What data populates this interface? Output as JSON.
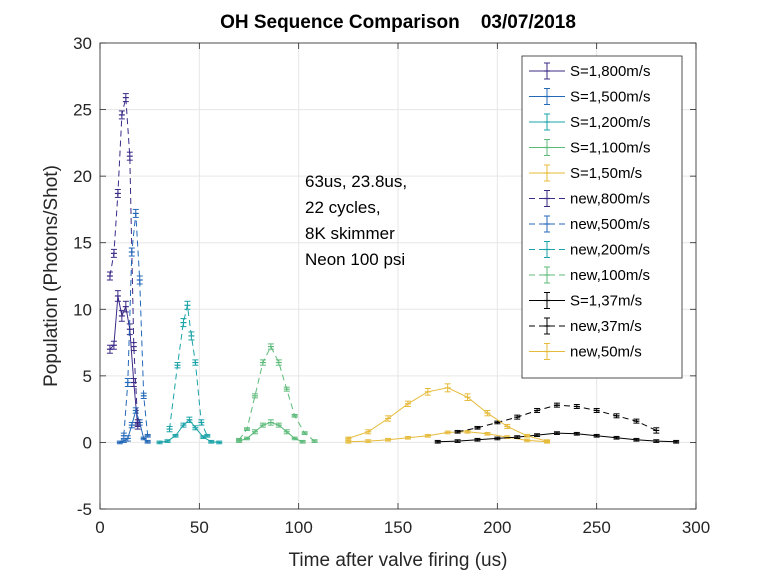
{
  "chart_data": {
    "type": "line",
    "title": "OH Sequence Comparison    03/07/2018",
    "xlabel": "Time after valve firing (us)",
    "ylabel": "Population (Photons/Shot)",
    "xlim": [
      0,
      300
    ],
    "ylim": [
      -5,
      30
    ],
    "xticks": [
      0,
      50,
      100,
      150,
      200,
      250,
      300
    ],
    "yticks": [
      -5,
      0,
      5,
      10,
      15,
      20,
      25,
      30
    ],
    "grid": true,
    "legend_position": "top-right",
    "annotation": [
      "63us, 23.8us,",
      "22 cycles,",
      "8K skimmer",
      "Neon 100 psi"
    ],
    "series": [
      {
        "name": "S=1,800m/s",
        "color": "#3b2a86",
        "dash": "solid",
        "x": [
          5,
          7,
          9,
          11,
          13,
          15,
          17,
          19
        ],
        "y": [
          7.0,
          7.3,
          11.0,
          9.5,
          10.2,
          8.5,
          4.5,
          1.2
        ],
        "err": [
          0.3,
          0.3,
          0.4,
          0.4,
          0.4,
          0.4,
          0.3,
          0.2
        ]
      },
      {
        "name": "S=1,500m/s",
        "color": "#2468b8",
        "dash": "solid",
        "x": [
          10,
          12,
          14,
          16,
          18,
          20,
          22,
          24
        ],
        "y": [
          0.0,
          0.1,
          0.3,
          1.3,
          2.4,
          1.5,
          0.3,
          0.05
        ],
        "err": [
          0.1,
          0.1,
          0.2,
          0.2,
          0.2,
          0.2,
          0.1,
          0.1
        ]
      },
      {
        "name": "S=1,200m/s",
        "color": "#1aa3a8",
        "dash": "solid",
        "x": [
          30,
          34,
          38,
          42,
          45,
          48,
          52,
          56,
          60
        ],
        "y": [
          0.0,
          0.1,
          0.5,
          1.3,
          1.7,
          1.1,
          0.4,
          0.05,
          0.0
        ],
        "err": [
          0.1,
          0.1,
          0.1,
          0.15,
          0.2,
          0.15,
          0.1,
          0.1,
          0.1
        ]
      },
      {
        "name": "S=1,100m/s",
        "color": "#5dbb7a",
        "dash": "solid",
        "x": [
          70,
          74,
          78,
          82,
          86,
          90,
          94,
          98,
          102
        ],
        "y": [
          0.1,
          0.3,
          0.8,
          1.3,
          1.5,
          1.3,
          0.8,
          0.3,
          0.05
        ],
        "err": [
          0.1,
          0.1,
          0.15,
          0.15,
          0.2,
          0.15,
          0.15,
          0.1,
          0.1
        ]
      },
      {
        "name": "S=1,50m/s",
        "color": "#e6bb3b",
        "dash": "solid",
        "x": [
          125,
          135,
          145,
          155,
          165,
          175,
          185,
          195,
          205,
          215,
          225
        ],
        "y": [
          0.05,
          0.1,
          0.2,
          0.35,
          0.5,
          0.75,
          0.8,
          0.65,
          0.4,
          0.15,
          0.05
        ],
        "err": [
          0.1,
          0.1,
          0.1,
          0.1,
          0.1,
          0.1,
          0.1,
          0.1,
          0.1,
          0.1,
          0.1
        ]
      },
      {
        "name": "new,800m/s",
        "color": "#3b2a86",
        "dash": "dashed",
        "x": [
          5,
          7,
          9,
          11,
          13,
          15,
          17,
          19
        ],
        "y": [
          12.5,
          14.2,
          18.7,
          24.6,
          25.9,
          21.5,
          7.2,
          1.5
        ],
        "err": [
          0.3,
          0.3,
          0.3,
          0.3,
          0.3,
          0.3,
          0.3,
          0.2
        ]
      },
      {
        "name": "new,500m/s",
        "color": "#2468b8",
        "dash": "dashed",
        "x": [
          12,
          14,
          16,
          18,
          20,
          22,
          24
        ],
        "y": [
          0.5,
          4.5,
          14.3,
          17.2,
          12.2,
          3.5,
          0.5
        ],
        "err": [
          0.2,
          0.3,
          0.3,
          0.3,
          0.3,
          0.2,
          0.1
        ]
      },
      {
        "name": "new,200m/s",
        "color": "#1aa3a8",
        "dash": "dashed",
        "x": [
          35,
          39,
          42,
          44,
          46,
          48,
          51,
          54
        ],
        "y": [
          1.0,
          5.8,
          9.0,
          10.3,
          8.0,
          6.0,
          1.5,
          0.5
        ],
        "err": [
          0.2,
          0.2,
          0.3,
          0.3,
          0.3,
          0.2,
          0.2,
          0.1
        ]
      },
      {
        "name": "new,100m/s",
        "color": "#5dbb7a",
        "dash": "dashed",
        "x": [
          70,
          74,
          78,
          82,
          86,
          90,
          94,
          98,
          103,
          108
        ],
        "y": [
          0.2,
          1.0,
          3.5,
          6.0,
          7.2,
          6.0,
          4.0,
          2.0,
          0.7,
          0.1
        ],
        "err": [
          0.1,
          0.1,
          0.15,
          0.2,
          0.2,
          0.2,
          0.15,
          0.1,
          0.1,
          0.1
        ]
      },
      {
        "name": "S=1,37m/s",
        "color": "#000000",
        "dash": "solid",
        "x": [
          170,
          180,
          190,
          200,
          210,
          220,
          230,
          240,
          250,
          260,
          270,
          280,
          290
        ],
        "y": [
          0.05,
          0.1,
          0.2,
          0.3,
          0.4,
          0.55,
          0.7,
          0.65,
          0.5,
          0.35,
          0.2,
          0.1,
          0.05
        ],
        "err": [
          0.1,
          0.1,
          0.1,
          0.1,
          0.1,
          0.1,
          0.1,
          0.1,
          0.1,
          0.1,
          0.1,
          0.1,
          0.1
        ]
      },
      {
        "name": "new,37m/s",
        "color": "#000000",
        "dash": "dashed",
        "x": [
          180,
          190,
          200,
          210,
          220,
          230,
          240,
          250,
          260,
          270,
          280
        ],
        "y": [
          0.8,
          1.1,
          1.5,
          1.9,
          2.4,
          2.8,
          2.7,
          2.4,
          2.0,
          1.6,
          0.9
        ],
        "err": [
          0.1,
          0.1,
          0.1,
          0.15,
          0.15,
          0.15,
          0.15,
          0.15,
          0.15,
          0.15,
          0.2
        ]
      },
      {
        "name": "new,50m/s",
        "color": "#e6bb3b",
        "dash": "solid",
        "x": [
          125,
          135,
          145,
          155,
          165,
          175,
          185,
          195,
          205,
          215,
          225
        ],
        "y": [
          0.3,
          0.8,
          1.8,
          2.9,
          3.8,
          4.1,
          3.4,
          2.2,
          1.2,
          0.5,
          0.1
        ],
        "err": [
          0.1,
          0.15,
          0.2,
          0.2,
          0.25,
          0.3,
          0.25,
          0.2,
          0.15,
          0.1,
          0.1
        ]
      }
    ]
  }
}
